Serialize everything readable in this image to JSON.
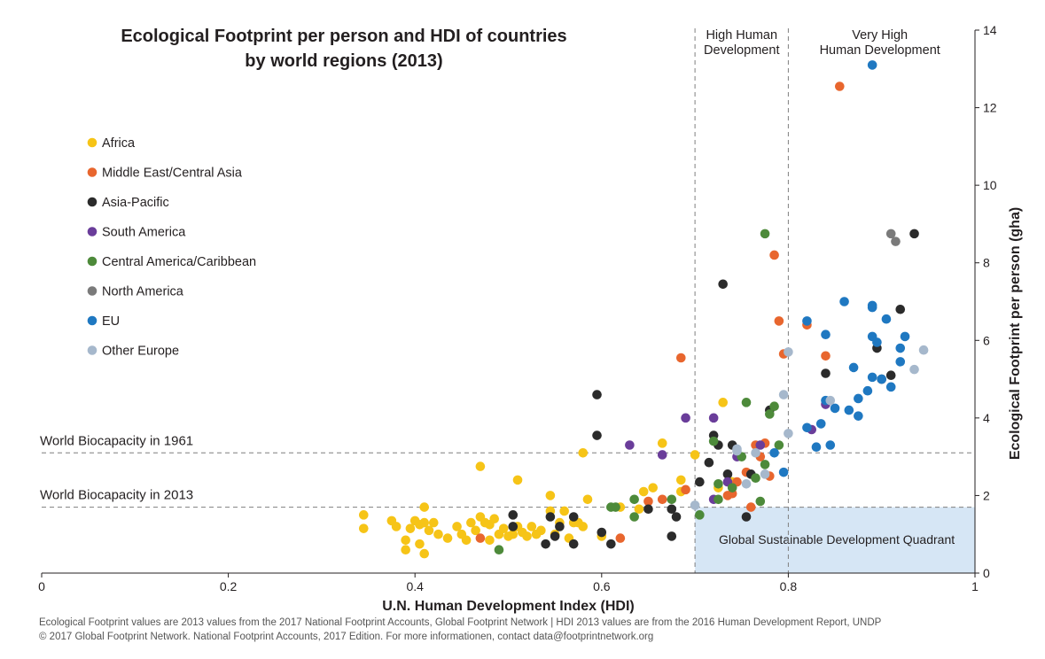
{
  "chart_data": {
    "type": "scatter",
    "title": [
      "Ecological Footprint per person and HDI of countries",
      "by world regions (2013)"
    ],
    "xlabel": "U.N. Human Development Index (HDI)",
    "ylabel": "Ecological Footprint per person (gha)",
    "xlim": [
      0,
      1
    ],
    "ylim": [
      0,
      14
    ],
    "x_ticks": [
      "0",
      "0.2",
      "0.4",
      "0.6",
      "0.8",
      "1"
    ],
    "y_ticks": [
      "0",
      "2",
      "4",
      "6",
      "8",
      "10",
      "12",
      "14"
    ],
    "grid": false,
    "legend_position": "left",
    "bands": {
      "high": {
        "label": [
          "High Human",
          "Development"
        ],
        "from": 0.7,
        "to": 0.8
      },
      "very_high": {
        "label": [
          "Very High",
          "Human Development"
        ],
        "from": 0.8,
        "to": 1.0
      }
    },
    "reference_lines": [
      {
        "label": "World Biocapacity in 1961",
        "value": 3.1
      },
      {
        "label": "World Biocapacity in 2013",
        "value": 1.7
      }
    ],
    "quadrant": {
      "label": "Global Sustainable Development Quadrant",
      "x_min": 0.7,
      "y_max": 1.7,
      "color": "#d6e6f5"
    },
    "series": [
      {
        "name": "Africa",
        "color": "#f6c417",
        "points": [
          [
            0.345,
            1.5
          ],
          [
            0.345,
            1.15
          ],
          [
            0.375,
            1.35
          ],
          [
            0.38,
            1.2
          ],
          [
            0.39,
            0.85
          ],
          [
            0.39,
            0.6
          ],
          [
            0.395,
            1.15
          ],
          [
            0.4,
            1.35
          ],
          [
            0.405,
            1.25
          ],
          [
            0.405,
            0.75
          ],
          [
            0.41,
            1.3
          ],
          [
            0.41,
            0.5
          ],
          [
            0.41,
            1.7
          ],
          [
            0.415,
            1.1
          ],
          [
            0.42,
            1.3
          ],
          [
            0.425,
            1.0
          ],
          [
            0.435,
            0.9
          ],
          [
            0.445,
            1.2
          ],
          [
            0.45,
            1.0
          ],
          [
            0.455,
            0.85
          ],
          [
            0.46,
            1.3
          ],
          [
            0.465,
            1.1
          ],
          [
            0.47,
            1.45
          ],
          [
            0.475,
            1.3
          ],
          [
            0.48,
            1.25
          ],
          [
            0.48,
            0.85
          ],
          [
            0.485,
            1.4
          ],
          [
            0.49,
            1.0
          ],
          [
            0.495,
            1.15
          ],
          [
            0.5,
            0.95
          ],
          [
            0.505,
            1.0
          ],
          [
            0.51,
            1.2
          ],
          [
            0.515,
            1.05
          ],
          [
            0.52,
            0.95
          ],
          [
            0.525,
            1.2
          ],
          [
            0.53,
            1.0
          ],
          [
            0.535,
            1.1
          ],
          [
            0.545,
            1.6
          ],
          [
            0.55,
            1.0
          ],
          [
            0.555,
            1.3
          ],
          [
            0.56,
            1.6
          ],
          [
            0.565,
            0.9
          ],
          [
            0.57,
            1.3
          ],
          [
            0.58,
            1.2
          ],
          [
            0.585,
            1.9
          ],
          [
            0.575,
            1.3
          ],
          [
            0.47,
            2.75
          ],
          [
            0.51,
            2.4
          ],
          [
            0.545,
            2.0
          ],
          [
            0.58,
            3.1
          ],
          [
            0.62,
            1.7
          ],
          [
            0.64,
            1.65
          ],
          [
            0.645,
            2.1
          ],
          [
            0.655,
            2.2
          ],
          [
            0.665,
            3.35
          ],
          [
            0.685,
            2.4
          ],
          [
            0.7,
            3.05
          ],
          [
            0.725,
            2.2
          ],
          [
            0.73,
            4.4
          ],
          [
            0.74,
            2.35
          ],
          [
            0.685,
            2.1
          ],
          [
            0.6,
            0.95
          ]
        ]
      },
      {
        "name": "Middle East/Central Asia",
        "color": "#e8662e",
        "points": [
          [
            0.47,
            0.9
          ],
          [
            0.62,
            0.9
          ],
          [
            0.65,
            1.85
          ],
          [
            0.665,
            1.9
          ],
          [
            0.685,
            5.55
          ],
          [
            0.69,
            2.15
          ],
          [
            0.735,
            2.0
          ],
          [
            0.74,
            2.05
          ],
          [
            0.745,
            2.35
          ],
          [
            0.755,
            2.6
          ],
          [
            0.76,
            1.7
          ],
          [
            0.765,
            3.3
          ],
          [
            0.77,
            3.0
          ],
          [
            0.775,
            3.35
          ],
          [
            0.78,
            2.5
          ],
          [
            0.785,
            8.2
          ],
          [
            0.79,
            6.5
          ],
          [
            0.795,
            5.65
          ],
          [
            0.82,
            6.4
          ],
          [
            0.84,
            5.6
          ],
          [
            0.855,
            12.55
          ]
        ]
      },
      {
        "name": "Asia-Pacific",
        "color": "#2b2b2b",
        "points": [
          [
            0.505,
            1.2
          ],
          [
            0.505,
            1.5
          ],
          [
            0.54,
            0.75
          ],
          [
            0.545,
            1.45
          ],
          [
            0.55,
            0.95
          ],
          [
            0.555,
            1.2
          ],
          [
            0.57,
            1.45
          ],
          [
            0.57,
            0.75
          ],
          [
            0.595,
            4.6
          ],
          [
            0.595,
            3.55
          ],
          [
            0.6,
            1.05
          ],
          [
            0.61,
            0.75
          ],
          [
            0.675,
            1.65
          ],
          [
            0.675,
            0.95
          ],
          [
            0.68,
            1.45
          ],
          [
            0.705,
            2.35
          ],
          [
            0.715,
            2.85
          ],
          [
            0.72,
            3.55
          ],
          [
            0.73,
            7.45
          ],
          [
            0.735,
            2.55
          ],
          [
            0.74,
            3.3
          ],
          [
            0.755,
            1.45
          ],
          [
            0.78,
            4.2
          ],
          [
            0.84,
            5.15
          ],
          [
            0.895,
            5.8
          ],
          [
            0.9,
            5.0
          ],
          [
            0.91,
            5.1
          ],
          [
            0.92,
            6.8
          ],
          [
            0.935,
            8.75
          ],
          [
            0.725,
            3.3
          ],
          [
            0.65,
            1.65
          ],
          [
            0.76,
            2.55
          ]
        ]
      },
      {
        "name": "South America",
        "color": "#6a3d9a",
        "points": [
          [
            0.63,
            3.3
          ],
          [
            0.665,
            3.05
          ],
          [
            0.69,
            4.0
          ],
          [
            0.72,
            4.0
          ],
          [
            0.72,
            1.9
          ],
          [
            0.735,
            2.35
          ],
          [
            0.745,
            3.0
          ],
          [
            0.77,
            3.3
          ],
          [
            0.84,
            4.35
          ],
          [
            0.825,
            3.7
          ]
        ]
      },
      {
        "name": "Central America/Caribbean",
        "color": "#4d8a3a",
        "points": [
          [
            0.49,
            0.6
          ],
          [
            0.61,
            1.7
          ],
          [
            0.615,
            1.7
          ],
          [
            0.635,
            1.45
          ],
          [
            0.635,
            1.9
          ],
          [
            0.675,
            1.9
          ],
          [
            0.705,
            1.5
          ],
          [
            0.72,
            3.4
          ],
          [
            0.725,
            2.3
          ],
          [
            0.725,
            1.9
          ],
          [
            0.74,
            2.2
          ],
          [
            0.75,
            3.0
          ],
          [
            0.755,
            4.4
          ],
          [
            0.765,
            2.45
          ],
          [
            0.775,
            8.75
          ],
          [
            0.775,
            2.8
          ],
          [
            0.78,
            4.1
          ],
          [
            0.785,
            4.3
          ],
          [
            0.79,
            3.3
          ],
          [
            0.77,
            1.85
          ]
        ]
      },
      {
        "name": "North America",
        "color": "#7a7a7a",
        "points": [
          [
            0.91,
            8.75
          ],
          [
            0.915,
            8.55
          ]
        ]
      },
      {
        "name": "EU",
        "color": "#1f78c1",
        "points": [
          [
            0.785,
            3.1
          ],
          [
            0.795,
            2.6
          ],
          [
            0.82,
            3.75
          ],
          [
            0.82,
            6.5
          ],
          [
            0.83,
            3.25
          ],
          [
            0.835,
            3.85
          ],
          [
            0.84,
            4.45
          ],
          [
            0.84,
            6.15
          ],
          [
            0.845,
            3.3
          ],
          [
            0.85,
            4.25
          ],
          [
            0.86,
            7.0
          ],
          [
            0.865,
            4.2
          ],
          [
            0.87,
            5.3
          ],
          [
            0.875,
            4.5
          ],
          [
            0.875,
            4.05
          ],
          [
            0.885,
            4.7
          ],
          [
            0.89,
            6.85
          ],
          [
            0.89,
            6.1
          ],
          [
            0.89,
            5.05
          ],
          [
            0.895,
            5.95
          ],
          [
            0.9,
            5.0
          ],
          [
            0.905,
            6.55
          ],
          [
            0.91,
            4.8
          ],
          [
            0.92,
            5.45
          ],
          [
            0.92,
            5.8
          ],
          [
            0.925,
            6.1
          ],
          [
            0.89,
            13.1
          ],
          [
            0.89,
            6.9
          ]
        ]
      },
      {
        "name": "Other Europe",
        "color": "#a6b8cc",
        "points": [
          [
            0.7,
            1.75
          ],
          [
            0.745,
            3.2
          ],
          [
            0.745,
            3.15
          ],
          [
            0.755,
            2.3
          ],
          [
            0.765,
            3.1
          ],
          [
            0.775,
            2.55
          ],
          [
            0.795,
            4.6
          ],
          [
            0.8,
            5.7
          ],
          [
            0.8,
            3.6
          ],
          [
            0.845,
            4.45
          ],
          [
            0.935,
            5.25
          ],
          [
            0.945,
            5.75
          ]
        ]
      }
    ]
  },
  "footer": {
    "line1": "Ecological Footprint values are 2013 values from the 2017 National Footprint Accounts, Global Footprint Network   |   HDI 2013 values are from the 2016 Human Development Report, UNDP",
    "line2": "© 2017 Global Footprint Network. National Footprint Accounts, 2017 Edition. For more informationen, contact data@footprintnetwork.org"
  }
}
